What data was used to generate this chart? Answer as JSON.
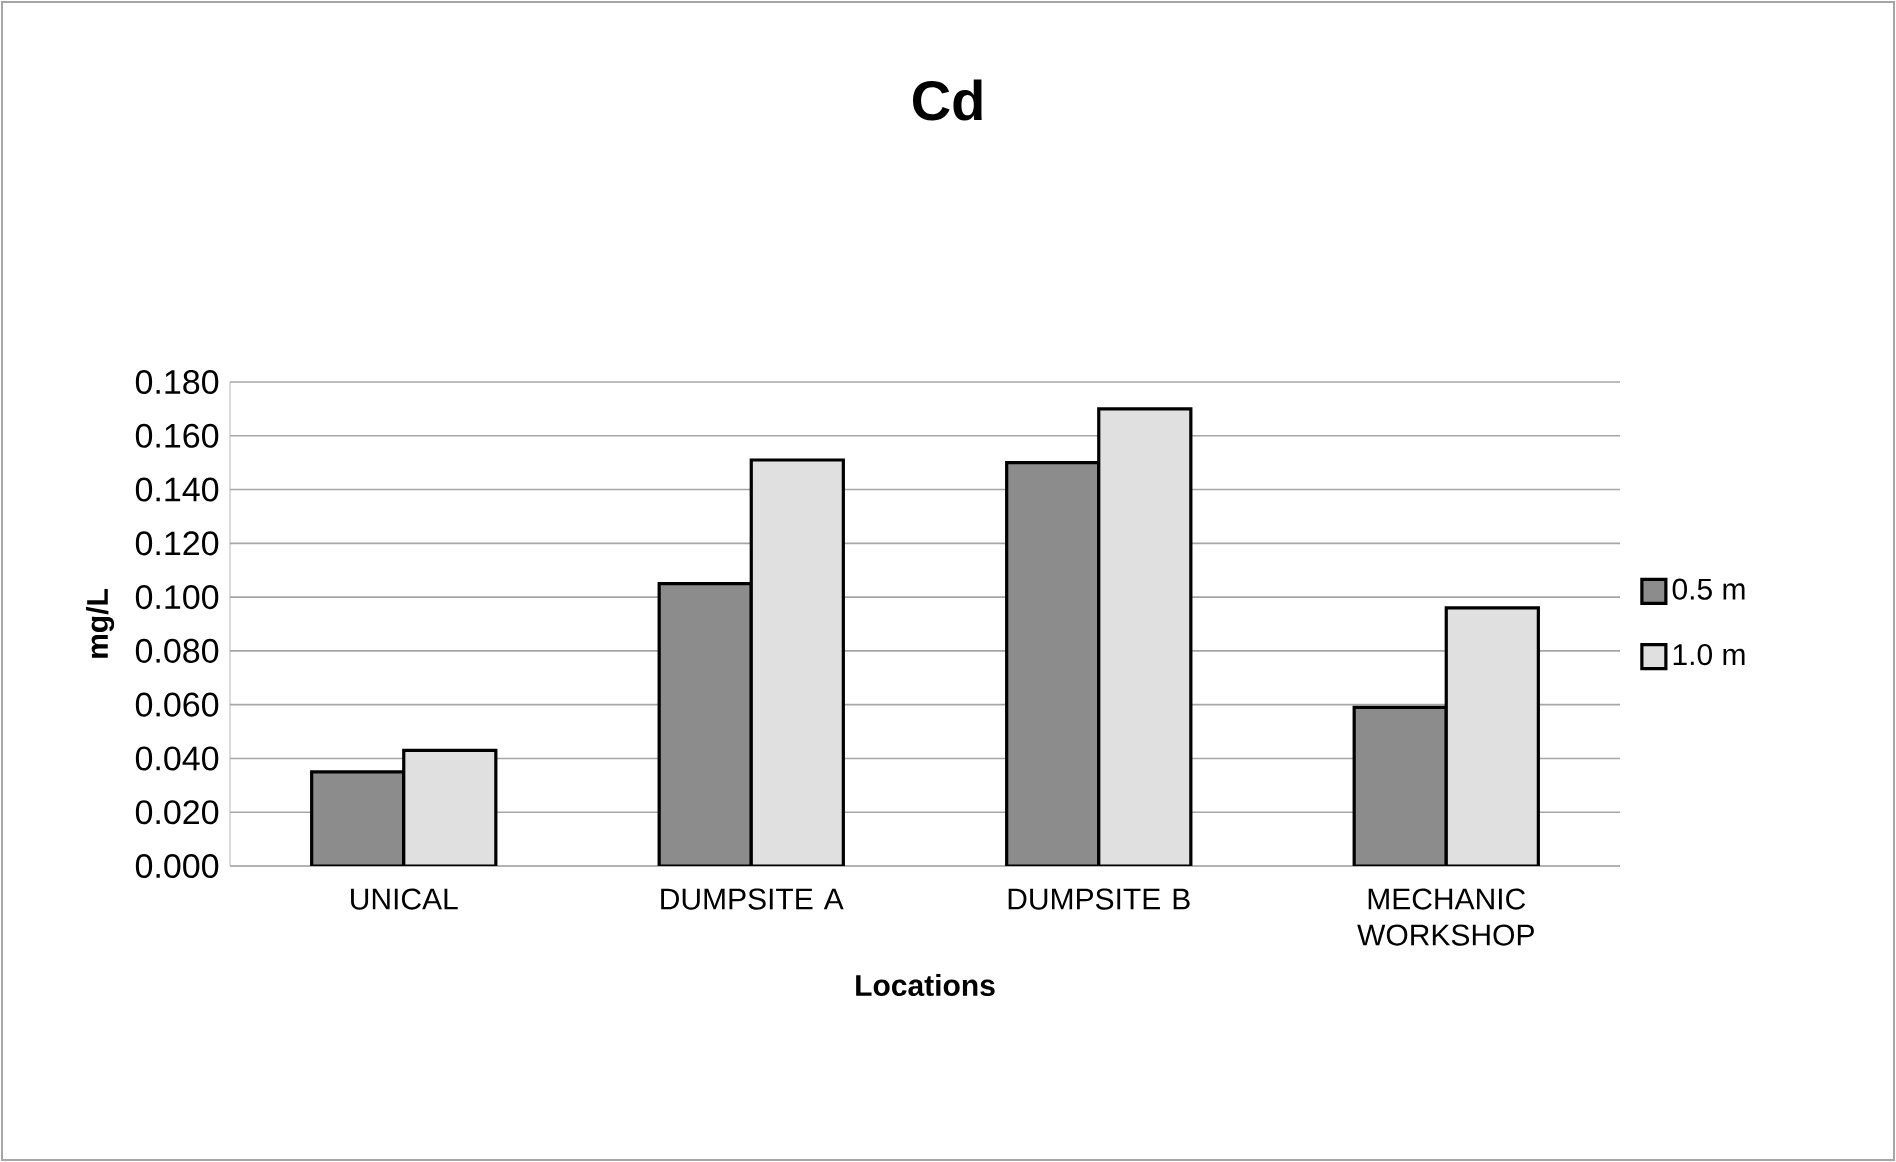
{
  "chart_data": {
    "type": "bar",
    "title": "Cd",
    "xlabel": "Locations",
    "ylabel": "mg/L",
    "categories": [
      "UNICAL",
      "DUMPSITE A",
      "DUMPSITE B",
      "MECHANIC WORKSHOP"
    ],
    "series": [
      {
        "name": "0.5 m",
        "color": "#8c8c8c",
        "values": [
          0.035,
          0.105,
          0.15,
          0.059
        ]
      },
      {
        "name": "1.0 m",
        "color": "#e0e0e0",
        "values": [
          0.043,
          0.151,
          0.17,
          0.096
        ]
      }
    ],
    "ylim": [
      0,
      0.18
    ],
    "yticks": [
      {
        "value": 0,
        "label": "0.000"
      },
      {
        "value": 0.02,
        "label": "0.020"
      },
      {
        "value": 0.04,
        "label": "0.040"
      },
      {
        "value": 0.06,
        "label": "0.060"
      },
      {
        "value": 0.08,
        "label": "0.080"
      },
      {
        "value": 0.1,
        "label": "0.100"
      },
      {
        "value": 0.12,
        "label": "0.120"
      },
      {
        "value": 0.14,
        "label": "0.140"
      },
      {
        "value": 0.16,
        "label": "0.160"
      },
      {
        "value": 0.18,
        "label": "0.180"
      }
    ],
    "grid": "y",
    "legend": "right"
  }
}
